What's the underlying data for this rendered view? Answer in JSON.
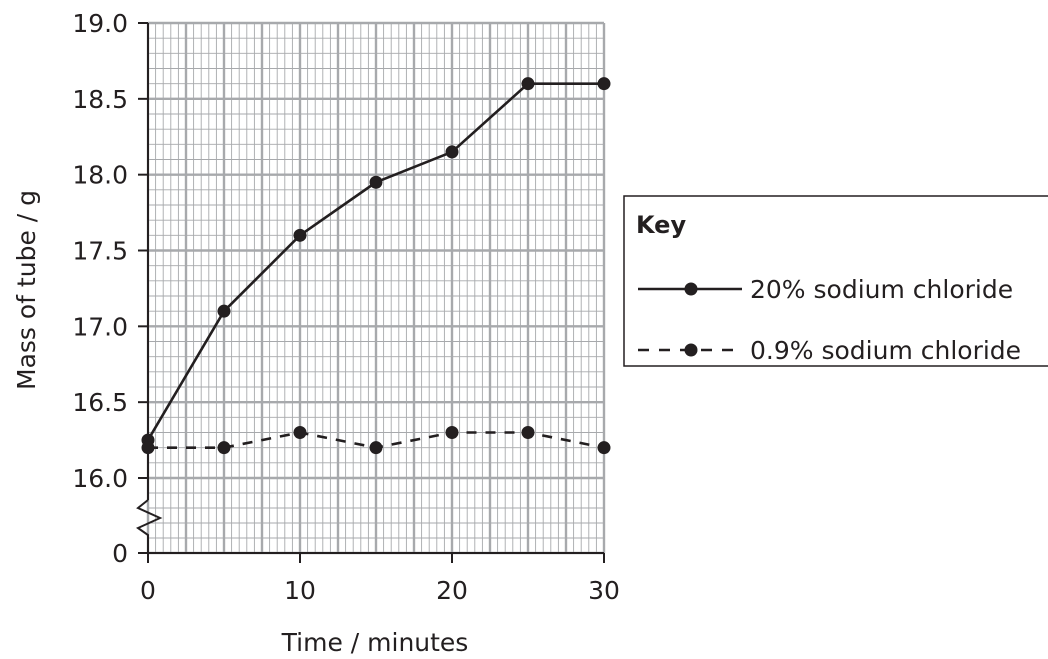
{
  "chart_data": {
    "type": "line",
    "title": "",
    "xlabel": "Time / minutes",
    "ylabel": "Mass of tube / g",
    "x": [
      0,
      5,
      10,
      15,
      20,
      25,
      30
    ],
    "xlim": [
      0,
      30
    ],
    "ylim": [
      16.0,
      19.0
    ],
    "xticks": [
      "0",
      "10",
      "20",
      "30"
    ],
    "yticks": [
      "19.0",
      "18.5",
      "18.0",
      "17.5",
      "17.0",
      "16.5",
      "16.0",
      "0"
    ],
    "axis_break": "y-axis break between 16.0 and 0",
    "grid": true,
    "series": [
      {
        "name": "20% sodium chloride",
        "style": "solid",
        "marker": "filled-circle",
        "values": [
          16.25,
          17.1,
          17.6,
          17.95,
          18.15,
          18.6,
          18.6
        ]
      },
      {
        "name": "0.9% sodium chloride",
        "style": "dashed",
        "marker": "filled-circle",
        "values": [
          16.2,
          16.2,
          16.3,
          16.2,
          16.3,
          16.3,
          16.2
        ]
      }
    ],
    "legend": {
      "title": "Key",
      "placement": "right"
    }
  },
  "colors": {
    "grid": "#a7a9ac",
    "ink": "#231f20"
  }
}
